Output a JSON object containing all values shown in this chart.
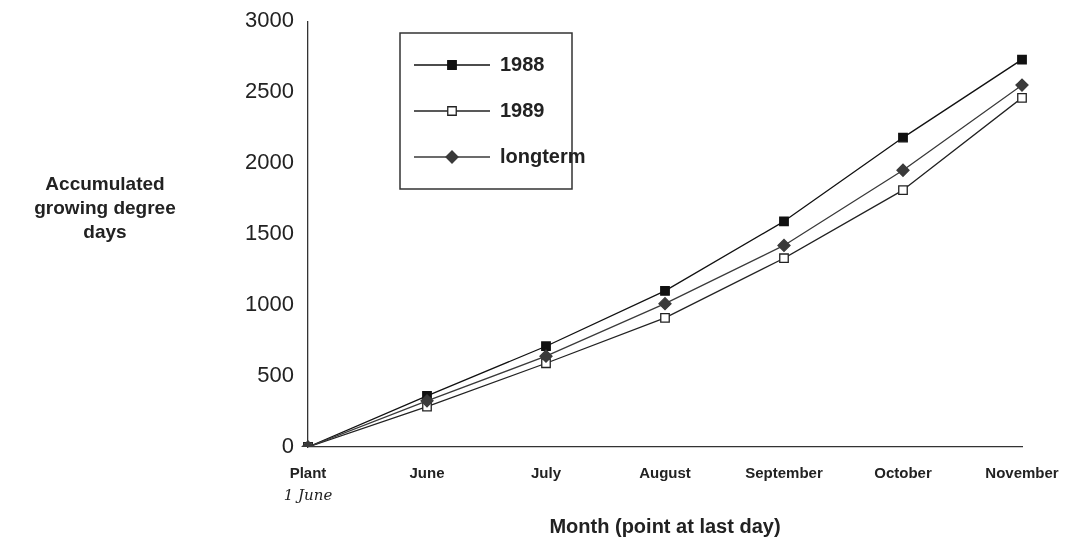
{
  "chart_data": {
    "type": "line",
    "xlabel": "Month (point at last day)",
    "ylabel": "Accumulated growing degree days",
    "categories": [
      "Plant",
      "June",
      "July",
      "August",
      "September",
      "October",
      "November"
    ],
    "annotations": [
      "1 June"
    ],
    "ylim": [
      0,
      3000
    ],
    "yticks": [
      0,
      500,
      1000,
      1500,
      2000,
      2500,
      3000
    ],
    "grid": false,
    "legend": "top left",
    "series": [
      {
        "name": "1988",
        "color": "#111111",
        "marker": "square",
        "values": [
          0,
          360,
          710,
          1100,
          1590,
          2180,
          2730
        ]
      },
      {
        "name": "1989",
        "color": "#222222",
        "marker": "square",
        "values": [
          0,
          285,
          590,
          910,
          1330,
          1810,
          2460
        ]
      },
      {
        "name": "longterm",
        "color": "#3a3a3a",
        "marker": "diamond",
        "values": [
          0,
          325,
          640,
          1010,
          1420,
          1950,
          2550
        ]
      }
    ]
  }
}
